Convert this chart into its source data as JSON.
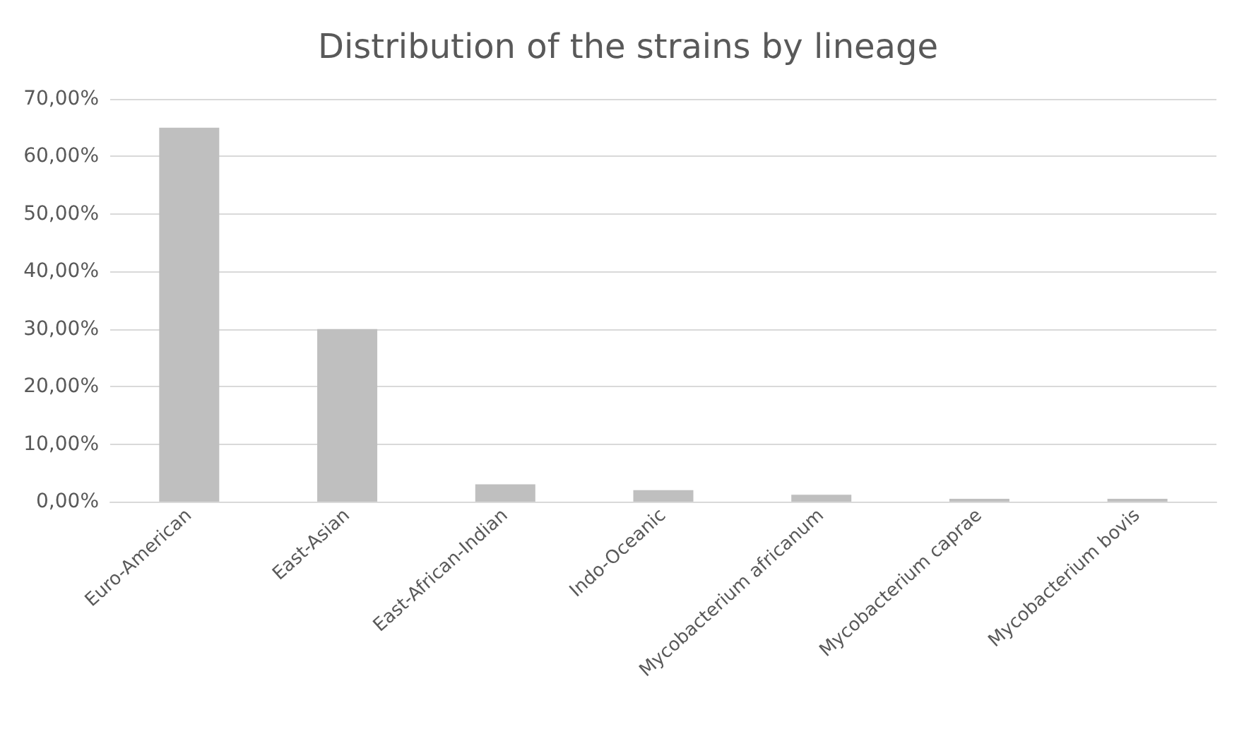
{
  "chart_data": {
    "type": "bar",
    "title": "Distribution of the strains by lineage",
    "categories": [
      "Euro-American",
      "East-Asian",
      "East-African-Indian",
      "Indo-Oceanic",
      "Mycobacterium africanum",
      "Mycobacterium caprae",
      "Mycobacterium bovis"
    ],
    "values": [
      65,
      30,
      3,
      2,
      1.2,
      0.5,
      0.5
    ],
    "color": "#bfbfbf",
    "ylim": [
      0,
      70
    ],
    "yticks": [
      {
        "value": 0,
        "label": "0,00%"
      },
      {
        "value": 10,
        "label": "10,00%"
      },
      {
        "value": 20,
        "label": "20,00%"
      },
      {
        "value": 30,
        "label": "30,00%"
      },
      {
        "value": 40,
        "label": "40,00%"
      },
      {
        "value": 50,
        "label": "50,00%"
      },
      {
        "value": 60,
        "label": "60,00%"
      },
      {
        "value": 70,
        "label": "70,00%"
      }
    ],
    "grid": "y"
  }
}
